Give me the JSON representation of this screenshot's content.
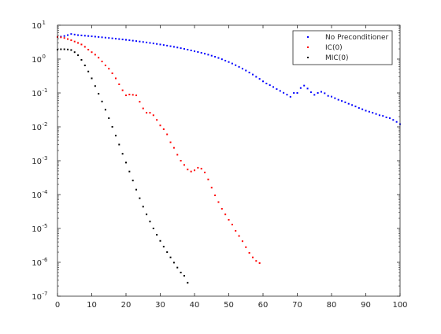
{
  "chart_data": {
    "type": "scatter",
    "title": "",
    "xlabel": "",
    "ylabel": "",
    "xlim": [
      0,
      100
    ],
    "ylim": [
      1e-07,
      10
    ],
    "yscale": "log",
    "grid": false,
    "legend_position": "top-right",
    "xticks": [
      {
        "value": 0,
        "label": "0"
      },
      {
        "value": 10,
        "label": "10"
      },
      {
        "value": 20,
        "label": "20"
      },
      {
        "value": 30,
        "label": "30"
      },
      {
        "value": 40,
        "label": "40"
      },
      {
        "value": 50,
        "label": "50"
      },
      {
        "value": 60,
        "label": "60"
      },
      {
        "value": 70,
        "label": "70"
      },
      {
        "value": 80,
        "label": "80"
      },
      {
        "value": 90,
        "label": "90"
      },
      {
        "value": 100,
        "label": "100"
      }
    ],
    "yticks": [
      {
        "value": 10,
        "base": "10",
        "exp": "1"
      },
      {
        "value": 1,
        "base": "10",
        "exp": "0"
      },
      {
        "value": 0.1,
        "base": "10",
        "exp": "-1"
      },
      {
        "value": 0.01,
        "base": "10",
        "exp": "-2"
      },
      {
        "value": 0.001,
        "base": "10",
        "exp": "-3"
      },
      {
        "value": 0.0001,
        "base": "10",
        "exp": "-4"
      },
      {
        "value": 1e-05,
        "base": "10",
        "exp": "-5"
      },
      {
        "value": 1e-06,
        "base": "10",
        "exp": "-6"
      },
      {
        "value": 1e-07,
        "base": "10",
        "exp": "-7"
      }
    ],
    "series": [
      {
        "name": "No Preconditioner",
        "color": "#0000ff",
        "x": [
          0,
          1,
          2,
          3,
          4,
          5,
          6,
          7,
          8,
          9,
          10,
          11,
          12,
          13,
          14,
          15,
          16,
          17,
          18,
          19,
          20,
          21,
          22,
          23,
          24,
          25,
          26,
          27,
          28,
          29,
          30,
          31,
          32,
          33,
          34,
          35,
          36,
          37,
          38,
          39,
          40,
          41,
          42,
          43,
          44,
          45,
          46,
          47,
          48,
          49,
          50,
          51,
          52,
          53,
          54,
          55,
          56,
          57,
          58,
          59,
          60,
          61,
          62,
          63,
          64,
          65,
          66,
          67,
          68,
          69,
          70,
          71,
          72,
          73,
          74,
          75,
          76,
          77,
          78,
          79,
          80,
          81,
          82,
          83,
          84,
          85,
          86,
          87,
          88,
          89,
          90,
          91,
          92,
          93,
          94,
          95,
          96,
          97,
          98,
          99,
          100
        ],
        "y": [
          4.5,
          4.6,
          4.8,
          5.1,
          5.5,
          5.3,
          5.1,
          5.0,
          4.9,
          4.8,
          4.7,
          4.6,
          4.5,
          4.4,
          4.3,
          4.2,
          4.1,
          4.0,
          3.9,
          3.8,
          3.7,
          3.6,
          3.5,
          3.4,
          3.3,
          3.2,
          3.1,
          3.0,
          2.9,
          2.8,
          2.7,
          2.6,
          2.5,
          2.4,
          2.3,
          2.2,
          2.1,
          2.0,
          1.9,
          1.8,
          1.7,
          1.62,
          1.53,
          1.44,
          1.35,
          1.26,
          1.17,
          1.08,
          0.99,
          0.9,
          0.82,
          0.74,
          0.66,
          0.59,
          0.52,
          0.46,
          0.4,
          0.35,
          0.3,
          0.26,
          0.22,
          0.19,
          0.17,
          0.15,
          0.13,
          0.115,
          0.101,
          0.089,
          0.077,
          0.1,
          0.1,
          0.14,
          0.165,
          0.135,
          0.105,
          0.088,
          0.1,
          0.108,
          0.098,
          0.082,
          0.078,
          0.07,
          0.063,
          0.058,
          0.053,
          0.048,
          0.044,
          0.04,
          0.036,
          0.033,
          0.03,
          0.028,
          0.026,
          0.024,
          0.022,
          0.021,
          0.019,
          0.018,
          0.016,
          0.014,
          0.012
        ]
      },
      {
        "name": "IC(0)",
        "color": "#ff0000",
        "x": [
          0,
          1,
          2,
          3,
          4,
          5,
          6,
          7,
          8,
          9,
          10,
          11,
          12,
          13,
          14,
          15,
          16,
          17,
          18,
          19,
          20,
          21,
          22,
          23,
          24,
          25,
          26,
          27,
          28,
          29,
          30,
          31,
          32,
          33,
          34,
          35,
          36,
          37,
          38,
          39,
          40,
          41,
          42,
          43,
          44,
          45,
          46,
          47,
          48,
          49,
          50,
          51,
          52,
          53,
          54,
          55,
          56,
          57,
          58,
          59
        ],
        "y": [
          4.5,
          4.4,
          4.2,
          3.9,
          3.6,
          3.3,
          3.0,
          2.7,
          2.3,
          1.9,
          1.6,
          1.35,
          1.1,
          0.85,
          0.65,
          0.52,
          0.38,
          0.27,
          0.18,
          0.12,
          0.085,
          0.09,
          0.088,
          0.085,
          0.055,
          0.035,
          0.026,
          0.026,
          0.022,
          0.016,
          0.011,
          0.0085,
          0.006,
          0.0035,
          0.0024,
          0.0015,
          0.001,
          0.00075,
          0.00055,
          0.00048,
          0.00052,
          0.00062,
          0.00058,
          0.00045,
          0.00028,
          0.00016,
          9.5e-05,
          6e-05,
          3.8e-05,
          2.6e-05,
          1.8e-05,
          1.3e-05,
          8.5e-06,
          6e-06,
          4.2e-06,
          2.8e-06,
          1.9e-06,
          1.4e-06,
          1.1e-06,
          9.5e-07
        ]
      },
      {
        "name": "MIC(0)",
        "color": "#000000",
        "x": [
          0,
          1,
          2,
          3,
          4,
          5,
          6,
          7,
          8,
          9,
          10,
          11,
          12,
          13,
          14,
          15,
          16,
          17,
          18,
          19,
          20,
          21,
          22,
          23,
          24,
          25,
          26,
          27,
          28,
          29,
          30,
          31,
          32,
          33,
          34,
          35,
          36,
          37,
          38
        ],
        "y": [
          1.9,
          1.95,
          1.95,
          1.92,
          1.85,
          1.6,
          1.3,
          0.95,
          0.65,
          0.43,
          0.27,
          0.16,
          0.095,
          0.056,
          0.032,
          0.018,
          0.01,
          0.0055,
          0.003,
          0.0016,
          0.00088,
          0.00048,
          0.00026,
          0.00014,
          7.8e-05,
          4.4e-05,
          2.6e-05,
          1.6e-05,
          1e-05,
          6.5e-06,
          4.3e-06,
          2.9e-06,
          2e-06,
          1.4e-06,
          9.8e-07,
          7e-07,
          5e-07,
          4e-07,
          2.5e-07
        ]
      }
    ]
  }
}
